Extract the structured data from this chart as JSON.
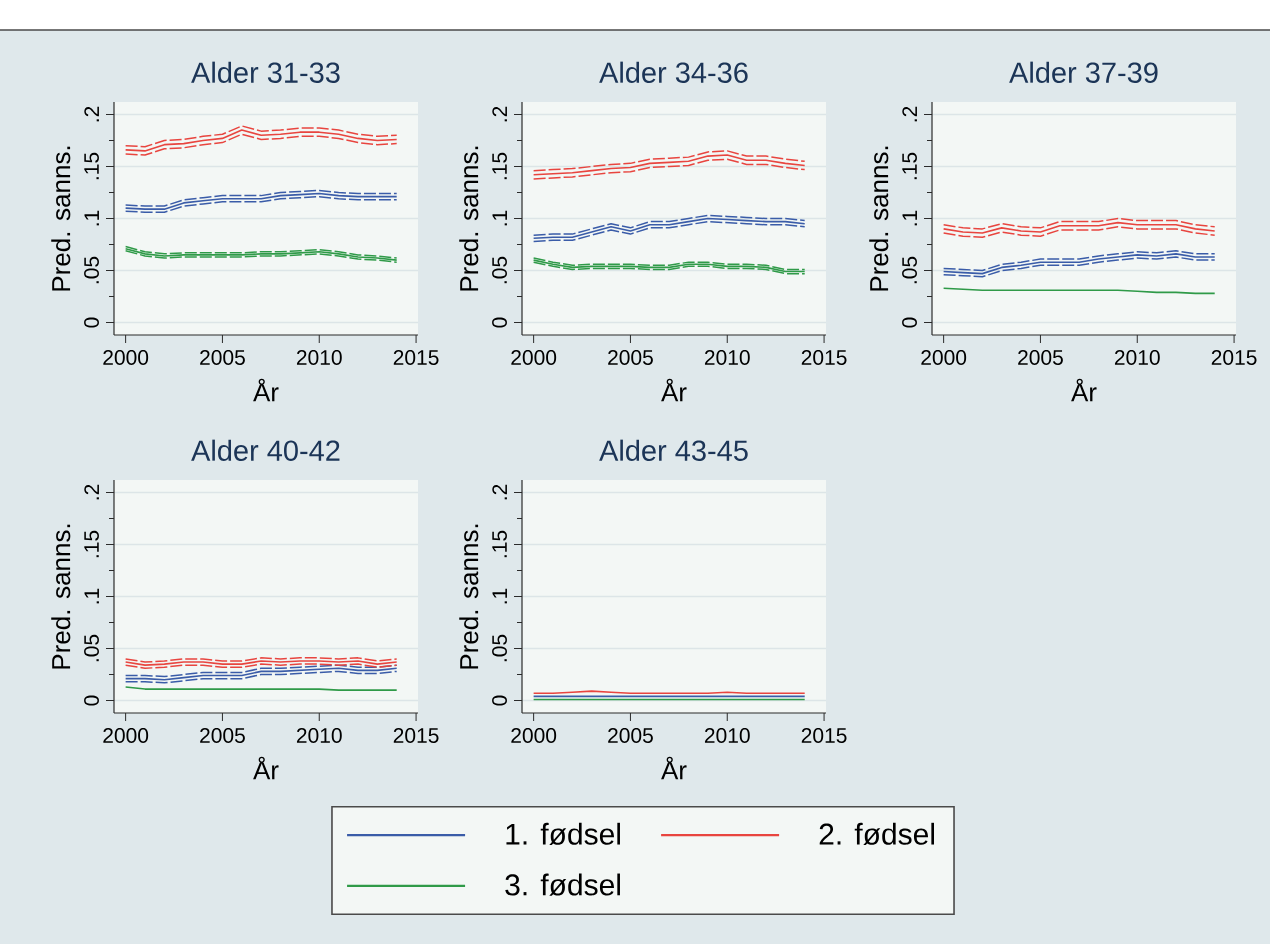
{
  "chart_data": [
    {
      "type": "line",
      "title": "Alder 31-33",
      "xlabel": "År",
      "ylabel": "Pred. sanns.",
      "x": [
        2000,
        2001,
        2002,
        2003,
        2004,
        2005,
        2006,
        2007,
        2008,
        2009,
        2010,
        2011,
        2012,
        2013,
        2014
      ],
      "xlim": [
        1999.4,
        2015.1
      ],
      "xticks": [
        2000,
        2005,
        2010,
        2015
      ],
      "ylim": [
        -0.012,
        0.212
      ],
      "yticks": [
        0,
        {
          "value": 0.05,
          "label": ".05"
        },
        {
          "value": 0.1,
          "label": ".1"
        },
        {
          "value": 0.15,
          "label": ".15"
        },
        {
          "value": 0.2,
          "label": ".2"
        }
      ],
      "grid": "y",
      "legend": "bottom",
      "series": [
        {
          "name": "1. fødsel",
          "color": "#3a5ca8",
          "values": [
            0.11,
            0.109,
            0.109,
            0.115,
            0.117,
            0.119,
            0.119,
            0.119,
            0.122,
            0.123,
            0.124,
            0.122,
            0.121,
            0.121,
            0.121
          ]
        },
        {
          "color": "#3a5ca8",
          "line_style": "dashed",
          "values": [
            0.107,
            0.106,
            0.106,
            0.112,
            0.114,
            0.116,
            0.116,
            0.116,
            0.119,
            0.12,
            0.121,
            0.119,
            0.118,
            0.118,
            0.118
          ]
        },
        {
          "color": "#3a5ca8",
          "line_style": "dashed",
          "values": [
            0.113,
            0.112,
            0.112,
            0.118,
            0.12,
            0.122,
            0.122,
            0.122,
            0.125,
            0.126,
            0.127,
            0.125,
            0.124,
            0.124,
            0.124
          ]
        },
        {
          "name": "2. fødsel",
          "color": "#e8453f",
          "values": [
            0.166,
            0.165,
            0.171,
            0.172,
            0.175,
            0.177,
            0.185,
            0.18,
            0.181,
            0.183,
            0.183,
            0.181,
            0.177,
            0.175,
            0.176
          ]
        },
        {
          "color": "#e8453f",
          "line_style": "dashed",
          "values": [
            0.162,
            0.161,
            0.167,
            0.168,
            0.171,
            0.173,
            0.181,
            0.176,
            0.177,
            0.179,
            0.179,
            0.177,
            0.173,
            0.171,
            0.172
          ]
        },
        {
          "color": "#e8453f",
          "line_style": "dashed",
          "values": [
            0.17,
            0.169,
            0.175,
            0.176,
            0.179,
            0.181,
            0.189,
            0.184,
            0.185,
            0.187,
            0.187,
            0.185,
            0.181,
            0.179,
            0.18
          ]
        },
        {
          "name": "3. fødsel",
          "color": "#2f9a48",
          "values": [
            0.071,
            0.066,
            0.064,
            0.065,
            0.065,
            0.065,
            0.065,
            0.066,
            0.066,
            0.067,
            0.068,
            0.066,
            0.063,
            0.062,
            0.06
          ]
        },
        {
          "color": "#2f9a48",
          "line_style": "dashed",
          "values": [
            0.069,
            0.064,
            0.062,
            0.063,
            0.063,
            0.063,
            0.063,
            0.064,
            0.064,
            0.065,
            0.066,
            0.064,
            0.061,
            0.06,
            0.058
          ]
        },
        {
          "color": "#2f9a48",
          "line_style": "dashed",
          "values": [
            0.073,
            0.068,
            0.066,
            0.067,
            0.067,
            0.067,
            0.067,
            0.068,
            0.068,
            0.069,
            0.07,
            0.068,
            0.065,
            0.064,
            0.062
          ]
        }
      ]
    },
    {
      "type": "line",
      "title": "Alder 34-36",
      "xlabel": "År",
      "ylabel": "Pred. sanns.",
      "x": [
        2000,
        2001,
        2002,
        2003,
        2004,
        2005,
        2006,
        2007,
        2008,
        2009,
        2010,
        2011,
        2012,
        2013,
        2014
      ],
      "xlim": [
        1999.4,
        2015.1
      ],
      "xticks": [
        2000,
        2005,
        2010,
        2015
      ],
      "ylim": [
        -0.012,
        0.212
      ],
      "yticks": [
        0,
        {
          "value": 0.05,
          "label": ".05"
        },
        {
          "value": 0.1,
          "label": ".1"
        },
        {
          "value": 0.15,
          "label": ".15"
        },
        {
          "value": 0.2,
          "label": ".2"
        }
      ],
      "grid": "y",
      "series": [
        {
          "color": "#3a5ca8",
          "values": [
            0.081,
            0.082,
            0.082,
            0.087,
            0.092,
            0.088,
            0.094,
            0.094,
            0.097,
            0.1,
            0.099,
            0.098,
            0.097,
            0.097,
            0.095
          ]
        },
        {
          "color": "#3a5ca8",
          "line_style": "dashed",
          "values": [
            0.078,
            0.079,
            0.079,
            0.084,
            0.089,
            0.085,
            0.091,
            0.091,
            0.094,
            0.097,
            0.096,
            0.095,
            0.094,
            0.094,
            0.092
          ]
        },
        {
          "color": "#3a5ca8",
          "line_style": "dashed",
          "values": [
            0.084,
            0.085,
            0.085,
            0.09,
            0.095,
            0.091,
            0.097,
            0.097,
            0.1,
            0.103,
            0.102,
            0.101,
            0.1,
            0.1,
            0.098
          ]
        },
        {
          "color": "#e8453f",
          "values": [
            0.142,
            0.143,
            0.144,
            0.146,
            0.148,
            0.149,
            0.153,
            0.154,
            0.155,
            0.16,
            0.161,
            0.156,
            0.156,
            0.153,
            0.151
          ]
        },
        {
          "color": "#e8453f",
          "line_style": "dashed",
          "values": [
            0.138,
            0.139,
            0.14,
            0.142,
            0.144,
            0.145,
            0.149,
            0.15,
            0.151,
            0.156,
            0.157,
            0.152,
            0.152,
            0.149,
            0.147
          ]
        },
        {
          "color": "#e8453f",
          "line_style": "dashed",
          "values": [
            0.146,
            0.147,
            0.148,
            0.15,
            0.152,
            0.153,
            0.157,
            0.158,
            0.159,
            0.164,
            0.165,
            0.16,
            0.16,
            0.157,
            0.155
          ]
        },
        {
          "color": "#2f9a48",
          "values": [
            0.06,
            0.056,
            0.053,
            0.054,
            0.054,
            0.054,
            0.053,
            0.053,
            0.056,
            0.056,
            0.054,
            0.054,
            0.053,
            0.049,
            0.049
          ]
        },
        {
          "color": "#2f9a48",
          "line_style": "dashed",
          "values": [
            0.058,
            0.054,
            0.051,
            0.052,
            0.052,
            0.052,
            0.051,
            0.051,
            0.054,
            0.054,
            0.052,
            0.052,
            0.051,
            0.047,
            0.047
          ]
        },
        {
          "color": "#2f9a48",
          "line_style": "dashed",
          "values": [
            0.062,
            0.058,
            0.055,
            0.056,
            0.056,
            0.056,
            0.055,
            0.055,
            0.058,
            0.058,
            0.056,
            0.056,
            0.055,
            0.051,
            0.051
          ]
        }
      ]
    },
    {
      "type": "line",
      "title": "Alder 37-39",
      "xlabel": "År",
      "ylabel": "Pred. sanns.",
      "x": [
        2000,
        2001,
        2002,
        2003,
        2004,
        2005,
        2006,
        2007,
        2008,
        2009,
        2010,
        2011,
        2012,
        2013,
        2014
      ],
      "xlim": [
        1999.4,
        2015.1
      ],
      "xticks": [
        2000,
        2005,
        2010,
        2015
      ],
      "ylim": [
        -0.012,
        0.212
      ],
      "yticks": [
        0,
        {
          "value": 0.05,
          "label": ".05"
        },
        {
          "value": 0.1,
          "label": ".1"
        },
        {
          "value": 0.15,
          "label": ".15"
        },
        {
          "value": 0.2,
          "label": ".2"
        }
      ],
      "grid": "y",
      "series": [
        {
          "color": "#3a5ca8",
          "values": [
            0.049,
            0.048,
            0.047,
            0.053,
            0.055,
            0.058,
            0.058,
            0.058,
            0.061,
            0.063,
            0.065,
            0.064,
            0.066,
            0.063,
            0.063
          ]
        },
        {
          "color": "#3a5ca8",
          "line_style": "dashed",
          "values": [
            0.046,
            0.045,
            0.044,
            0.05,
            0.052,
            0.055,
            0.055,
            0.055,
            0.058,
            0.06,
            0.062,
            0.061,
            0.063,
            0.06,
            0.06
          ]
        },
        {
          "color": "#3a5ca8",
          "line_style": "dashed",
          "values": [
            0.052,
            0.051,
            0.05,
            0.056,
            0.058,
            0.061,
            0.061,
            0.061,
            0.064,
            0.066,
            0.068,
            0.067,
            0.069,
            0.066,
            0.066
          ]
        },
        {
          "color": "#e8453f",
          "values": [
            0.09,
            0.087,
            0.086,
            0.091,
            0.088,
            0.087,
            0.093,
            0.093,
            0.093,
            0.096,
            0.094,
            0.094,
            0.094,
            0.09,
            0.088
          ]
        },
        {
          "color": "#e8453f",
          "line_style": "dashed",
          "values": [
            0.086,
            0.083,
            0.082,
            0.087,
            0.084,
            0.083,
            0.089,
            0.089,
            0.089,
            0.092,
            0.09,
            0.09,
            0.09,
            0.086,
            0.084
          ]
        },
        {
          "color": "#e8453f",
          "line_style": "dashed",
          "values": [
            0.094,
            0.091,
            0.09,
            0.095,
            0.092,
            0.091,
            0.097,
            0.097,
            0.097,
            0.1,
            0.098,
            0.098,
            0.098,
            0.094,
            0.092
          ]
        },
        {
          "color": "#2f9a48",
          "values": [
            0.033,
            0.032,
            0.031,
            0.031,
            0.031,
            0.031,
            0.031,
            0.031,
            0.031,
            0.031,
            0.03,
            0.029,
            0.029,
            0.028,
            0.028
          ]
        }
      ]
    },
    {
      "type": "line",
      "title": "Alder 40-42",
      "xlabel": "År",
      "ylabel": "Pred. sanns.",
      "x": [
        2000,
        2001,
        2002,
        2003,
        2004,
        2005,
        2006,
        2007,
        2008,
        2009,
        2010,
        2011,
        2012,
        2013,
        2014
      ],
      "xlim": [
        1999.4,
        2015.1
      ],
      "xticks": [
        2000,
        2005,
        2010,
        2015
      ],
      "ylim": [
        -0.012,
        0.212
      ],
      "yticks": [
        0,
        {
          "value": 0.05,
          "label": ".05"
        },
        {
          "value": 0.1,
          "label": ".1"
        },
        {
          "value": 0.15,
          "label": ".15"
        },
        {
          "value": 0.2,
          "label": ".2"
        }
      ],
      "grid": "y",
      "series": [
        {
          "color": "#3a5ca8",
          "values": [
            0.021,
            0.021,
            0.02,
            0.022,
            0.024,
            0.024,
            0.024,
            0.028,
            0.028,
            0.029,
            0.03,
            0.031,
            0.029,
            0.029,
            0.031
          ]
        },
        {
          "color": "#3a5ca8",
          "line_style": "dashed",
          "values": [
            0.018,
            0.018,
            0.017,
            0.019,
            0.021,
            0.021,
            0.021,
            0.025,
            0.025,
            0.026,
            0.027,
            0.028,
            0.026,
            0.026,
            0.028
          ]
        },
        {
          "color": "#3a5ca8",
          "line_style": "dashed",
          "values": [
            0.024,
            0.024,
            0.023,
            0.025,
            0.027,
            0.027,
            0.027,
            0.031,
            0.031,
            0.032,
            0.033,
            0.034,
            0.032,
            0.032,
            0.034
          ]
        },
        {
          "color": "#e8453f",
          "values": [
            0.037,
            0.034,
            0.035,
            0.037,
            0.037,
            0.035,
            0.035,
            0.038,
            0.037,
            0.038,
            0.038,
            0.037,
            0.038,
            0.035,
            0.037
          ]
        },
        {
          "color": "#e8453f",
          "line_style": "dashed",
          "values": [
            0.034,
            0.031,
            0.032,
            0.034,
            0.034,
            0.032,
            0.032,
            0.035,
            0.034,
            0.035,
            0.035,
            0.034,
            0.035,
            0.032,
            0.034
          ]
        },
        {
          "color": "#e8453f",
          "line_style": "dashed",
          "values": [
            0.04,
            0.037,
            0.038,
            0.04,
            0.04,
            0.038,
            0.038,
            0.041,
            0.04,
            0.041,
            0.041,
            0.04,
            0.041,
            0.038,
            0.04
          ]
        },
        {
          "color": "#2f9a48",
          "values": [
            0.013,
            0.011,
            0.011,
            0.011,
            0.011,
            0.011,
            0.011,
            0.011,
            0.011,
            0.011,
            0.011,
            0.01,
            0.01,
            0.01,
            0.01
          ]
        }
      ]
    },
    {
      "type": "line",
      "title": "Alder 43-45",
      "xlabel": "År",
      "ylabel": "Pred. sanns.",
      "x": [
        2000,
        2001,
        2002,
        2003,
        2004,
        2005,
        2006,
        2007,
        2008,
        2009,
        2010,
        2011,
        2012,
        2013,
        2014
      ],
      "xlim": [
        1999.4,
        2015.1
      ],
      "xticks": [
        2000,
        2005,
        2010,
        2015
      ],
      "ylim": [
        -0.012,
        0.212
      ],
      "yticks": [
        0,
        {
          "value": 0.05,
          "label": ".05"
        },
        {
          "value": 0.1,
          "label": ".1"
        },
        {
          "value": 0.15,
          "label": ".15"
        },
        {
          "value": 0.2,
          "label": ".2"
        }
      ],
      "grid": "y",
      "series": [
        {
          "color": "#3a5ca8",
          "values": [
            0.004,
            0.004,
            0.004,
            0.004,
            0.004,
            0.004,
            0.004,
            0.004,
            0.004,
            0.004,
            0.004,
            0.004,
            0.004,
            0.004,
            0.004
          ]
        },
        {
          "color": "#e8453f",
          "values": [
            0.007,
            0.007,
            0.008,
            0.009,
            0.008,
            0.007,
            0.007,
            0.007,
            0.007,
            0.007,
            0.008,
            0.007,
            0.007,
            0.007,
            0.007
          ]
        },
        {
          "color": "#2f9a48",
          "values": [
            0.001,
            0.001,
            0.001,
            0.001,
            0.001,
            0.001,
            0.001,
            0.001,
            0.001,
            0.001,
            0.001,
            0.001,
            0.001,
            0.001,
            0.001
          ]
        }
      ]
    }
  ]
}
